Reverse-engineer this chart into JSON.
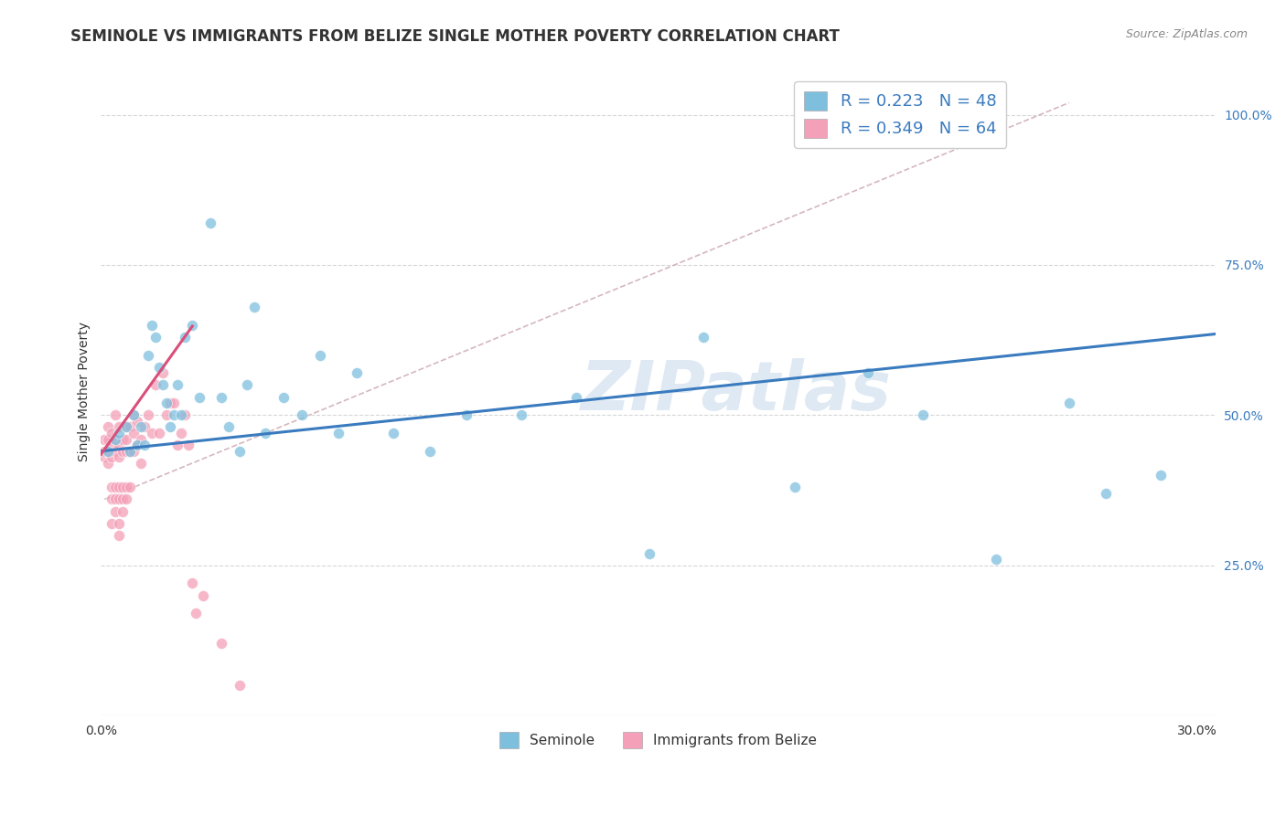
{
  "title": "SEMINOLE VS IMMIGRANTS FROM BELIZE SINGLE MOTHER POVERTY CORRELATION CHART",
  "source": "Source: ZipAtlas.com",
  "ylabel": "Single Mother Poverty",
  "xlim": [
    0.0,
    0.305
  ],
  "ylim": [
    0.0,
    1.08
  ],
  "color_blue": "#7fbfde",
  "color_pink": "#f4a0b8",
  "trendline_blue": "#3a7bbf",
  "trendline_pink": "#d94f7a",
  "trendline_dashed_color": "#d0b0b8",
  "watermark": "ZIPatlas",
  "grid_color": "#cccccc",
  "seminole_x": [
    0.002,
    0.004,
    0.005,
    0.007,
    0.008,
    0.009,
    0.01,
    0.011,
    0.012,
    0.013,
    0.014,
    0.015,
    0.016,
    0.017,
    0.018,
    0.019,
    0.02,
    0.021,
    0.022,
    0.023,
    0.025,
    0.027,
    0.03,
    0.033,
    0.035,
    0.038,
    0.04,
    0.042,
    0.045,
    0.05,
    0.055,
    0.06,
    0.065,
    0.07,
    0.08,
    0.09,
    0.1,
    0.115,
    0.13,
    0.15,
    0.165,
    0.19,
    0.21,
    0.225,
    0.245,
    0.265,
    0.275,
    0.29
  ],
  "seminole_y": [
    0.44,
    0.46,
    0.47,
    0.48,
    0.44,
    0.5,
    0.45,
    0.48,
    0.45,
    0.6,
    0.65,
    0.63,
    0.58,
    0.55,
    0.52,
    0.48,
    0.5,
    0.55,
    0.5,
    0.63,
    0.65,
    0.53,
    0.82,
    0.53,
    0.48,
    0.44,
    0.55,
    0.68,
    0.47,
    0.53,
    0.5,
    0.6,
    0.47,
    0.57,
    0.47,
    0.44,
    0.5,
    0.5,
    0.53,
    0.27,
    0.63,
    0.38,
    0.57,
    0.5,
    0.26,
    0.52,
    0.37,
    0.4
  ],
  "belize_x": [
    0.001,
    0.001,
    0.001,
    0.002,
    0.002,
    0.002,
    0.002,
    0.003,
    0.003,
    0.003,
    0.003,
    0.003,
    0.003,
    0.004,
    0.004,
    0.004,
    0.004,
    0.004,
    0.004,
    0.005,
    0.005,
    0.005,
    0.005,
    0.005,
    0.005,
    0.005,
    0.006,
    0.006,
    0.006,
    0.006,
    0.006,
    0.007,
    0.007,
    0.007,
    0.007,
    0.007,
    0.008,
    0.008,
    0.008,
    0.009,
    0.009,
    0.009,
    0.01,
    0.01,
    0.011,
    0.011,
    0.012,
    0.013,
    0.014,
    0.015,
    0.016,
    0.017,
    0.018,
    0.019,
    0.02,
    0.021,
    0.022,
    0.023,
    0.024,
    0.025,
    0.026,
    0.028,
    0.033,
    0.038
  ],
  "belize_y": [
    0.43,
    0.44,
    0.46,
    0.42,
    0.44,
    0.46,
    0.48,
    0.43,
    0.45,
    0.47,
    0.36,
    0.38,
    0.32,
    0.44,
    0.46,
    0.5,
    0.36,
    0.38,
    0.34,
    0.43,
    0.45,
    0.48,
    0.36,
    0.38,
    0.32,
    0.3,
    0.44,
    0.46,
    0.38,
    0.36,
    0.34,
    0.44,
    0.46,
    0.48,
    0.36,
    0.38,
    0.44,
    0.48,
    0.38,
    0.44,
    0.47,
    0.5,
    0.45,
    0.49,
    0.46,
    0.42,
    0.48,
    0.5,
    0.47,
    0.55,
    0.47,
    0.57,
    0.5,
    0.52,
    0.52,
    0.45,
    0.47,
    0.5,
    0.45,
    0.22,
    0.17,
    0.2,
    0.12,
    0.05
  ],
  "blue_trend_x": [
    0.0,
    0.305
  ],
  "blue_trend_y": [
    0.44,
    0.635
  ],
  "pink_trend_x": [
    0.0,
    0.025
  ],
  "pink_trend_y": [
    0.435,
    0.648
  ],
  "dash_line_x": [
    0.001,
    0.265
  ],
  "dash_line_y": [
    0.36,
    1.02
  ]
}
